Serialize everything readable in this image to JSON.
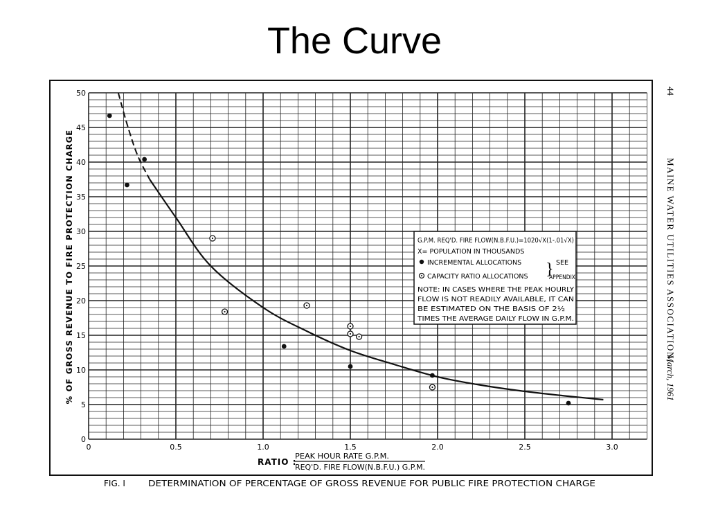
{
  "slide": {
    "title": "The Curve"
  },
  "chart_data": {
    "type": "scatter",
    "xlim": [
      0,
      3.0
    ],
    "ylim": [
      0,
      50
    ],
    "x_ticks": [
      "0",
      "0.5",
      "1.0",
      "1.5",
      "2.0",
      "2.5",
      "3.0"
    ],
    "y_ticks": [
      "0",
      "5",
      "10",
      "15",
      "20",
      "25",
      "30",
      "35",
      "40",
      "45",
      "50"
    ],
    "ylabel": "% OF GROSS REVENUE TO FIRE PROTECTION CHARGE",
    "xlabel": {
      "prefix": "RATIO :",
      "numerator": "PEAK HOUR RATE G.P.M.",
      "denominator": "REQ'D. FIRE FLOW(N.B.F.U.) G.P.M."
    },
    "curve": {
      "x": [
        0.35,
        0.5,
        0.7,
        1.0,
        1.25,
        1.5,
        1.75,
        2.0,
        2.25,
        2.5,
        2.75,
        2.95
      ],
      "y": [
        37.5,
        32.0,
        25.0,
        19.0,
        15.6,
        12.8,
        10.8,
        9.0,
        7.8,
        6.9,
        6.2,
        5.7
      ]
    },
    "curve_dashed": {
      "x": [
        0.17,
        0.22,
        0.28,
        0.35
      ],
      "y": [
        50.0,
        45.5,
        41.0,
        37.5
      ]
    },
    "series": [
      {
        "name": "INCREMENTAL ALLOCATIONS",
        "x": [
          0.12,
          0.22,
          0.32,
          1.12,
          1.5,
          1.97,
          2.75
        ],
        "y": [
          46.7,
          36.7,
          40.4,
          13.4,
          10.5,
          9.2,
          5.2
        ]
      },
      {
        "name": "CAPACITY RATIO ALLOCATIONS",
        "x": [
          0.71,
          0.78,
          1.25,
          1.5,
          1.5,
          1.55,
          1.97
        ],
        "y": [
          29.0,
          18.4,
          19.3,
          16.3,
          15.2,
          14.8,
          7.5
        ]
      }
    ],
    "annotation": {
      "formula": "G.P.M. REQ'D. FIRE FLOW(N.B.F.U.)=1020√X(1-.01√X)",
      "xdef": "X= POPULATION IN THOUSANDS",
      "incremental": "INCREMENTAL  ALLOCATIONS",
      "capacity": "CAPACITY RATIO ALLOCATIONS",
      "see": "SEE",
      "appendix": "APPENDIX",
      "note": [
        "NOTE:  IN CASES WHERE THE PEAK HOURLY",
        "FLOW IS NOT READILY AVAILABLE, IT CAN",
        "BE ESTIMATED ON THE BASIS OF  2½",
        "TIMES THE AVERAGE DAILY FLOW IN G.P.M."
      ]
    },
    "caption": {
      "label": "FIG. I",
      "text": "DETERMINATION  OF  PERCENTAGE  OF  GROSS  REVENUE  FOR  PUBLIC FIRE  PROTECTION  CHARGE"
    },
    "margin_text": {
      "page_number": "44",
      "journal": "MAINE WATER UTILITIES ASSOCIATION,",
      "date": "March, 1961"
    }
  }
}
